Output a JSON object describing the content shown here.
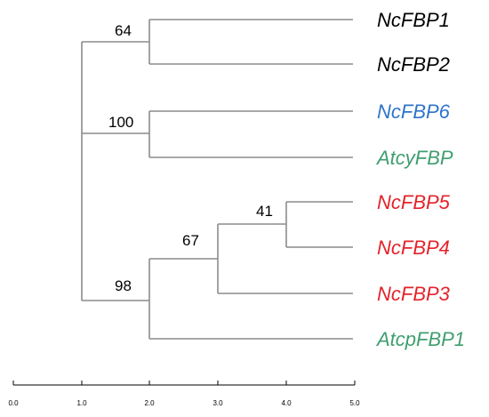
{
  "tree": {
    "leaves": [
      {
        "label": "NcFBP1",
        "color": "#000000"
      },
      {
        "label": "NcFBP2",
        "color": "#000000"
      },
      {
        "label": "NcFBP6",
        "color": "#2f74c9"
      },
      {
        "label": "AtcyFBP",
        "color": "#3f9e6f"
      },
      {
        "label": "NcFBP5",
        "color": "#e3232a"
      },
      {
        "label": "NcFBP4",
        "color": "#e3232a"
      },
      {
        "label": "NcFBP3",
        "color": "#e3232a"
      },
      {
        "label": "AtcpFBP1",
        "color": "#3f9e6f"
      }
    ],
    "bootstrap_values": [
      "64",
      "100",
      "98",
      "67",
      "41"
    ]
  },
  "axis": {
    "ticks": [
      "0.0",
      "1.0",
      "2.0",
      "3.0",
      "4.0",
      "5.0"
    ]
  }
}
